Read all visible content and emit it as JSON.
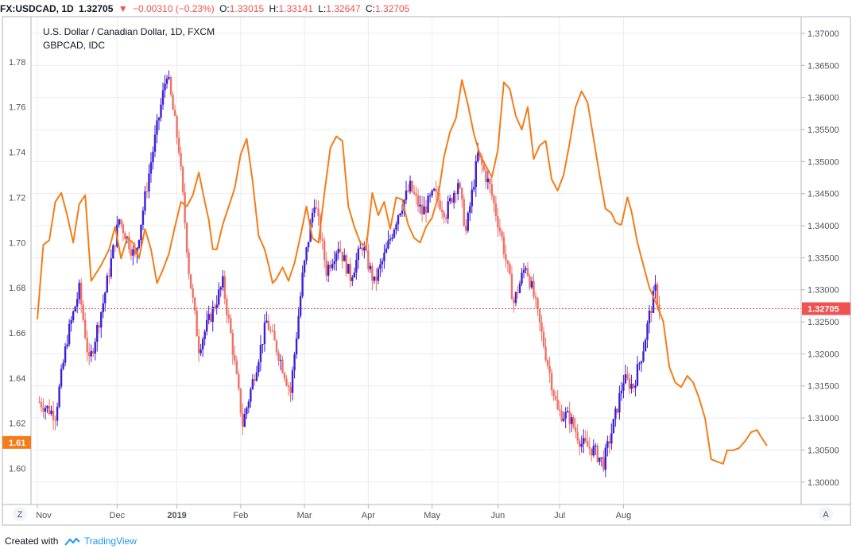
{
  "header": {
    "symbol": "FX:USDCAD, 1D",
    "last": "1.32705",
    "change": "−0.00310 (−0.23%)",
    "o_label": "O:",
    "o": "1.33015",
    "h_label": "H:",
    "h": "1.33141",
    "l_label": "L:",
    "l": "1.32647",
    "c_label": "C:",
    "c": "1.32705"
  },
  "legend": {
    "main": "U.S. Dollar / Canadian Dollar, 1D, FXCM",
    "compare": "GBPCAD, IDC"
  },
  "corner_left": "Z",
  "corner_right": "A",
  "footer": {
    "created_with": "Created with",
    "brand": "TradingView"
  },
  "colors": {
    "up": "#3f1ed6",
    "down": "#ef7165",
    "line": "#f57c18",
    "grid": "#e9ecf2",
    "price_tag": "#ef5350",
    "line_tag": "#f57c18"
  },
  "chart_data": {
    "type": "candlestick+line",
    "x_ticks": [
      "Nov",
      "Dec",
      "2019",
      "Feb",
      "Mar",
      "Apr",
      "May",
      "Jun",
      "Jul",
      "Aug"
    ],
    "y_left": {
      "ticks": [
        "1.60",
        "1.62",
        "1.64",
        "1.66",
        "1.68",
        "1.70",
        "1.72",
        "1.74",
        "1.76",
        "1.78"
      ],
      "range": [
        1.584,
        1.8
      ],
      "current_tag": "1.61"
    },
    "y_right": {
      "ticks": [
        "1.30000",
        "1.30500",
        "1.31000",
        "1.31500",
        "1.32000",
        "1.32500",
        "1.33000",
        "1.33500",
        "1.34000",
        "1.34500",
        "1.35000",
        "1.35500",
        "1.36000",
        "1.36500",
        "1.37000"
      ],
      "range": [
        1.2965,
        1.3726
      ],
      "current_tag": "1.32705"
    },
    "series": [
      {
        "name": "USDCAD",
        "axis": "right",
        "kind": "candles",
        "anchors": [
          [
            0,
            1.3125
          ],
          [
            8,
            1.3105
          ],
          [
            14,
            1.3225
          ],
          [
            20,
            1.33
          ],
          [
            25,
            1.3185
          ],
          [
            32,
            1.328
          ],
          [
            40,
            1.341
          ],
          [
            48,
            1.335
          ],
          [
            56,
            1.35
          ],
          [
            64,
            1.364
          ],
          [
            70,
            1.352
          ],
          [
            75,
            1.333
          ],
          [
            80,
            1.321
          ],
          [
            86,
            1.326
          ],
          [
            92,
            1.331
          ],
          [
            96,
            1.323
          ],
          [
            102,
            1.309
          ],
          [
            108,
            1.317
          ],
          [
            114,
            1.325
          ],
          [
            120,
            1.32
          ],
          [
            126,
            1.314
          ],
          [
            132,
            1.332
          ],
          [
            138,
            1.344
          ],
          [
            144,
            1.333
          ],
          [
            150,
            1.337
          ],
          [
            156,
            1.332
          ],
          [
            162,
            1.337
          ],
          [
            168,
            1.331
          ],
          [
            174,
            1.336
          ],
          [
            180,
            1.342
          ],
          [
            186,
            1.346
          ],
          [
            192,
            1.342
          ],
          [
            198,
            1.345
          ],
          [
            204,
            1.342
          ],
          [
            210,
            1.347
          ],
          [
            214,
            1.339
          ],
          [
            220,
            1.351
          ],
          [
            226,
            1.346
          ],
          [
            232,
            1.338
          ],
          [
            238,
            1.328
          ],
          [
            244,
            1.334
          ],
          [
            248,
            1.329
          ],
          [
            254,
            1.32
          ],
          [
            260,
            1.311
          ],
          [
            266,
            1.31
          ],
          [
            272,
            1.306
          ],
          [
            278,
            1.305
          ],
          [
            283,
            1.303
          ],
          [
            288,
            1.309
          ],
          [
            293,
            1.316
          ],
          [
            298,
            1.315
          ],
          [
            303,
            1.321
          ],
          [
            306,
            1.326
          ],
          [
            309,
            1.33
          ],
          [
            311,
            1.32705
          ]
        ]
      },
      {
        "name": "GBPCAD",
        "axis": "left",
        "kind": "line",
        "anchors": [
          [
            0,
            1.666
          ],
          [
            3,
            1.699
          ],
          [
            6,
            1.701
          ],
          [
            9,
            1.718
          ],
          [
            12,
            1.722
          ],
          [
            15,
            1.712
          ],
          [
            18,
            1.7
          ],
          [
            21,
            1.717
          ],
          [
            24,
            1.721
          ],
          [
            27,
            1.683
          ],
          [
            32,
            1.69
          ],
          [
            36,
            1.697
          ],
          [
            39,
            1.707
          ],
          [
            42,
            1.693
          ],
          [
            45,
            1.702
          ],
          [
            48,
            1.7
          ],
          [
            51,
            1.693
          ],
          [
            54,
            1.706
          ],
          [
            57,
            1.697
          ],
          [
            60,
            1.682
          ],
          [
            63,
            1.688
          ],
          [
            66,
            1.695
          ],
          [
            69,
            1.707
          ],
          [
            72,
            1.718
          ],
          [
            75,
            1.716
          ],
          [
            78,
            1.721
          ],
          [
            81,
            1.731
          ],
          [
            84,
            1.718
          ],
          [
            86,
            1.71
          ],
          [
            88,
            1.697
          ],
          [
            90,
            1.697
          ],
          [
            93,
            1.708
          ],
          [
            96,
            1.716
          ],
          [
            99,
            1.724
          ],
          [
            102,
            1.739
          ],
          [
            105,
            1.746
          ],
          [
            108,
            1.727
          ],
          [
            111,
            1.703
          ],
          [
            114,
            1.697
          ],
          [
            116,
            1.69
          ],
          [
            118,
            1.682
          ],
          [
            120,
            1.684
          ],
          [
            123,
            1.689
          ],
          [
            126,
            1.683
          ],
          [
            129,
            1.691
          ],
          [
            132,
            1.703
          ],
          [
            135,
            1.716
          ],
          [
            138,
            1.702
          ],
          [
            141,
            1.7
          ],
          [
            144,
            1.722
          ],
          [
            147,
            1.742
          ],
          [
            150,
            1.747
          ],
          [
            153,
            1.745
          ],
          [
            156,
            1.716
          ],
          [
            159,
            1.707
          ],
          [
            162,
            1.7
          ],
          [
            165,
            1.698
          ],
          [
            168,
            1.722
          ],
          [
            171,
            1.712
          ],
          [
            174,
            1.718
          ],
          [
            177,
            1.706
          ],
          [
            180,
            1.72
          ],
          [
            183,
            1.719
          ],
          [
            186,
            1.708
          ],
          [
            189,
            1.702
          ],
          [
            192,
            1.7
          ],
          [
            195,
            1.707
          ],
          [
            198,
            1.711
          ],
          [
            201,
            1.72
          ],
          [
            204,
            1.738
          ],
          [
            207,
            1.749
          ],
          [
            210,
            1.755
          ],
          [
            213,
            1.772
          ],
          [
            216,
            1.761
          ],
          [
            219,
            1.748
          ],
          [
            222,
            1.739
          ],
          [
            225,
            1.734
          ],
          [
            228,
            1.729
          ],
          [
            231,
            1.741
          ],
          [
            234,
            1.771
          ],
          [
            237,
            1.768
          ],
          [
            240,
            1.756
          ],
          [
            243,
            1.75
          ],
          [
            246,
            1.76
          ],
          [
            249,
            1.737
          ],
          [
            252,
            1.743
          ],
          [
            255,
            1.745
          ],
          [
            258,
            1.728
          ],
          [
            261,
            1.723
          ],
          [
            264,
            1.73
          ],
          [
            267,
            1.744
          ],
          [
            270,
            1.76
          ],
          [
            273,
            1.767
          ],
          [
            276,
            1.762
          ],
          [
            279,
            1.746
          ],
          [
            282,
            1.73
          ],
          [
            285,
            1.715
          ],
          [
            288,
            1.713
          ],
          [
            290,
            1.709
          ],
          [
            292,
            1.708
          ],
          [
            293,
            1.708
          ],
          [
            296,
            1.72
          ],
          [
            298,
            1.714
          ],
          [
            301,
            1.7
          ],
          [
            304,
            1.69
          ],
          [
            307,
            1.68
          ],
          [
            311,
            1.672
          ],
          [
            314,
            1.665
          ],
          [
            317,
            1.645
          ],
          [
            320,
            1.638
          ],
          [
            323,
            1.636
          ],
          [
            326,
            1.641
          ],
          [
            329,
            1.638
          ],
          [
            332,
            1.631
          ],
          [
            335,
            1.622
          ],
          [
            338,
            1.604
          ],
          [
            341,
            1.603
          ],
          [
            344,
            1.602
          ],
          [
            346,
            1.608
          ],
          [
            349,
            1.608
          ],
          [
            352,
            1.609
          ],
          [
            355,
            1.612
          ],
          [
            358,
            1.616
          ],
          [
            361,
            1.617
          ],
          [
            363,
            1.614
          ],
          [
            366,
            1.61
          ]
        ]
      }
    ]
  }
}
